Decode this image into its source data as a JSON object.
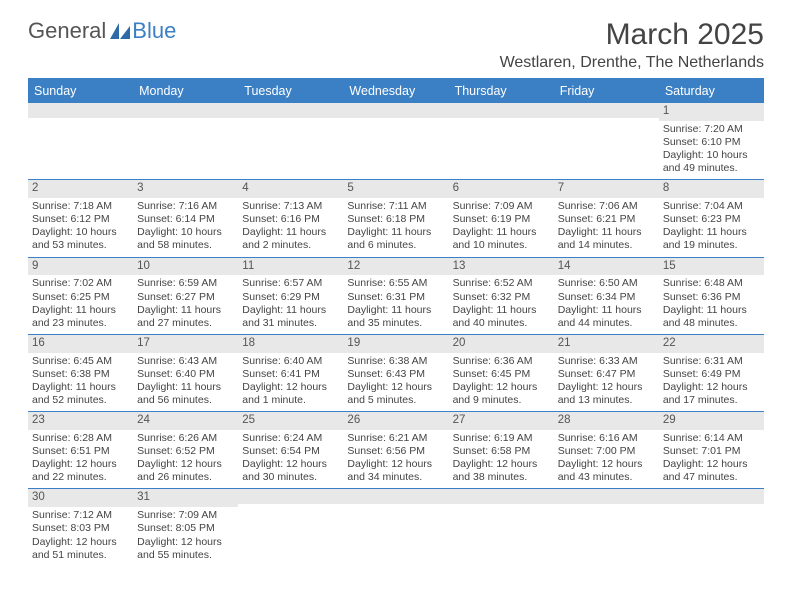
{
  "logo": {
    "text1": "General",
    "text2": "Blue"
  },
  "title": "March 2025",
  "location": "Westlaren, Drenthe, The Netherlands",
  "colors": {
    "accent": "#3b7fc4",
    "header_bg": "#3b7fc4",
    "daynum_bg": "#e8e8e8",
    "text": "#444444"
  },
  "day_headers": [
    "Sunday",
    "Monday",
    "Tuesday",
    "Wednesday",
    "Thursday",
    "Friday",
    "Saturday"
  ],
  "weeks": [
    [
      {
        "n": "",
        "sr": "",
        "ss": "",
        "dl": ""
      },
      {
        "n": "",
        "sr": "",
        "ss": "",
        "dl": ""
      },
      {
        "n": "",
        "sr": "",
        "ss": "",
        "dl": ""
      },
      {
        "n": "",
        "sr": "",
        "ss": "",
        "dl": ""
      },
      {
        "n": "",
        "sr": "",
        "ss": "",
        "dl": ""
      },
      {
        "n": "",
        "sr": "",
        "ss": "",
        "dl": ""
      },
      {
        "n": "1",
        "sr": "Sunrise: 7:20 AM",
        "ss": "Sunset: 6:10 PM",
        "dl": "Daylight: 10 hours and 49 minutes."
      }
    ],
    [
      {
        "n": "2",
        "sr": "Sunrise: 7:18 AM",
        "ss": "Sunset: 6:12 PM",
        "dl": "Daylight: 10 hours and 53 minutes."
      },
      {
        "n": "3",
        "sr": "Sunrise: 7:16 AM",
        "ss": "Sunset: 6:14 PM",
        "dl": "Daylight: 10 hours and 58 minutes."
      },
      {
        "n": "4",
        "sr": "Sunrise: 7:13 AM",
        "ss": "Sunset: 6:16 PM",
        "dl": "Daylight: 11 hours and 2 minutes."
      },
      {
        "n": "5",
        "sr": "Sunrise: 7:11 AM",
        "ss": "Sunset: 6:18 PM",
        "dl": "Daylight: 11 hours and 6 minutes."
      },
      {
        "n": "6",
        "sr": "Sunrise: 7:09 AM",
        "ss": "Sunset: 6:19 PM",
        "dl": "Daylight: 11 hours and 10 minutes."
      },
      {
        "n": "7",
        "sr": "Sunrise: 7:06 AM",
        "ss": "Sunset: 6:21 PM",
        "dl": "Daylight: 11 hours and 14 minutes."
      },
      {
        "n": "8",
        "sr": "Sunrise: 7:04 AM",
        "ss": "Sunset: 6:23 PM",
        "dl": "Daylight: 11 hours and 19 minutes."
      }
    ],
    [
      {
        "n": "9",
        "sr": "Sunrise: 7:02 AM",
        "ss": "Sunset: 6:25 PM",
        "dl": "Daylight: 11 hours and 23 minutes."
      },
      {
        "n": "10",
        "sr": "Sunrise: 6:59 AM",
        "ss": "Sunset: 6:27 PM",
        "dl": "Daylight: 11 hours and 27 minutes."
      },
      {
        "n": "11",
        "sr": "Sunrise: 6:57 AM",
        "ss": "Sunset: 6:29 PM",
        "dl": "Daylight: 11 hours and 31 minutes."
      },
      {
        "n": "12",
        "sr": "Sunrise: 6:55 AM",
        "ss": "Sunset: 6:31 PM",
        "dl": "Daylight: 11 hours and 35 minutes."
      },
      {
        "n": "13",
        "sr": "Sunrise: 6:52 AM",
        "ss": "Sunset: 6:32 PM",
        "dl": "Daylight: 11 hours and 40 minutes."
      },
      {
        "n": "14",
        "sr": "Sunrise: 6:50 AM",
        "ss": "Sunset: 6:34 PM",
        "dl": "Daylight: 11 hours and 44 minutes."
      },
      {
        "n": "15",
        "sr": "Sunrise: 6:48 AM",
        "ss": "Sunset: 6:36 PM",
        "dl": "Daylight: 11 hours and 48 minutes."
      }
    ],
    [
      {
        "n": "16",
        "sr": "Sunrise: 6:45 AM",
        "ss": "Sunset: 6:38 PM",
        "dl": "Daylight: 11 hours and 52 minutes."
      },
      {
        "n": "17",
        "sr": "Sunrise: 6:43 AM",
        "ss": "Sunset: 6:40 PM",
        "dl": "Daylight: 11 hours and 56 minutes."
      },
      {
        "n": "18",
        "sr": "Sunrise: 6:40 AM",
        "ss": "Sunset: 6:41 PM",
        "dl": "Daylight: 12 hours and 1 minute."
      },
      {
        "n": "19",
        "sr": "Sunrise: 6:38 AM",
        "ss": "Sunset: 6:43 PM",
        "dl": "Daylight: 12 hours and 5 minutes."
      },
      {
        "n": "20",
        "sr": "Sunrise: 6:36 AM",
        "ss": "Sunset: 6:45 PM",
        "dl": "Daylight: 12 hours and 9 minutes."
      },
      {
        "n": "21",
        "sr": "Sunrise: 6:33 AM",
        "ss": "Sunset: 6:47 PM",
        "dl": "Daylight: 12 hours and 13 minutes."
      },
      {
        "n": "22",
        "sr": "Sunrise: 6:31 AM",
        "ss": "Sunset: 6:49 PM",
        "dl": "Daylight: 12 hours and 17 minutes."
      }
    ],
    [
      {
        "n": "23",
        "sr": "Sunrise: 6:28 AM",
        "ss": "Sunset: 6:51 PM",
        "dl": "Daylight: 12 hours and 22 minutes."
      },
      {
        "n": "24",
        "sr": "Sunrise: 6:26 AM",
        "ss": "Sunset: 6:52 PM",
        "dl": "Daylight: 12 hours and 26 minutes."
      },
      {
        "n": "25",
        "sr": "Sunrise: 6:24 AM",
        "ss": "Sunset: 6:54 PM",
        "dl": "Daylight: 12 hours and 30 minutes."
      },
      {
        "n": "26",
        "sr": "Sunrise: 6:21 AM",
        "ss": "Sunset: 6:56 PM",
        "dl": "Daylight: 12 hours and 34 minutes."
      },
      {
        "n": "27",
        "sr": "Sunrise: 6:19 AM",
        "ss": "Sunset: 6:58 PM",
        "dl": "Daylight: 12 hours and 38 minutes."
      },
      {
        "n": "28",
        "sr": "Sunrise: 6:16 AM",
        "ss": "Sunset: 7:00 PM",
        "dl": "Daylight: 12 hours and 43 minutes."
      },
      {
        "n": "29",
        "sr": "Sunrise: 6:14 AM",
        "ss": "Sunset: 7:01 PM",
        "dl": "Daylight: 12 hours and 47 minutes."
      }
    ],
    [
      {
        "n": "30",
        "sr": "Sunrise: 7:12 AM",
        "ss": "Sunset: 8:03 PM",
        "dl": "Daylight: 12 hours and 51 minutes."
      },
      {
        "n": "31",
        "sr": "Sunrise: 7:09 AM",
        "ss": "Sunset: 8:05 PM",
        "dl": "Daylight: 12 hours and 55 minutes."
      },
      {
        "n": "",
        "sr": "",
        "ss": "",
        "dl": ""
      },
      {
        "n": "",
        "sr": "",
        "ss": "",
        "dl": ""
      },
      {
        "n": "",
        "sr": "",
        "ss": "",
        "dl": ""
      },
      {
        "n": "",
        "sr": "",
        "ss": "",
        "dl": ""
      },
      {
        "n": "",
        "sr": "",
        "ss": "",
        "dl": ""
      }
    ]
  ]
}
